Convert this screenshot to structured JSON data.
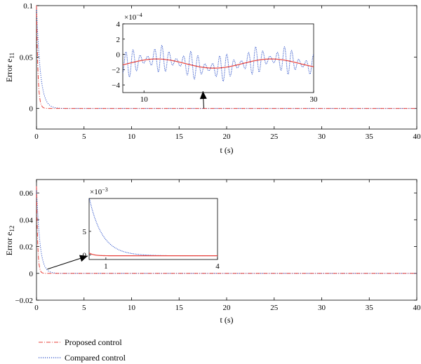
{
  "colors": {
    "proposed": "#e8403a",
    "compared": "#2a4fc8",
    "axis": "#000000",
    "arrow": "#000000"
  },
  "legend": {
    "items": [
      {
        "label": "Proposed control",
        "series": "proposed",
        "style": "dashdot"
      },
      {
        "label": "Compared control",
        "series": "compared",
        "style": "dotted"
      }
    ]
  },
  "chart_data": [
    {
      "id": "e11",
      "type": "line",
      "xlabel": "t (s)",
      "ylabel_main": "Error e",
      "ylabel_sub": "11",
      "xlim": [
        0,
        40
      ],
      "ylim": [
        -0.02,
        0.1
      ],
      "xticks": [
        0,
        5,
        10,
        15,
        20,
        25,
        30,
        35,
        40
      ],
      "xtick_labels": [
        "0",
        "5",
        "10",
        "15",
        "20",
        "25",
        "30",
        "35",
        "40"
      ],
      "yticks": [
        0,
        0.05,
        0.1
      ],
      "ytick_labels": [
        "0",
        "0.05",
        "0.1"
      ],
      "series": [
        {
          "key": "proposed",
          "name": "Proposed control",
          "initial": 0.1,
          "tau": 0.15
        },
        {
          "key": "compared",
          "name": "Compared control",
          "initial": 0.1,
          "tau": 0.4
        }
      ],
      "inset": {
        "xlim": [
          7.5,
          30
        ],
        "ylim": [
          -5,
          4
        ],
        "scale_label": "×10",
        "scale_exp": "−4",
        "xticks": [
          10,
          30
        ],
        "xtick_labels": [
          "10",
          "30"
        ],
        "yticks": [
          -4,
          -2,
          0,
          2,
          4
        ],
        "ytick_labels": [
          "−4",
          "−2",
          "0",
          "2",
          "4"
        ],
        "proposed": {
          "offset": -1.2,
          "amplitude": 0.6,
          "period": 13.5,
          "phase": 11.5
        },
        "compared": {
          "offset": -1.2,
          "amplitude": 0.6,
          "ripple": 1.8,
          "ripple_period": 0.85
        },
        "arrow_from_x": 17.6,
        "arrow_from_y": 0
      }
    },
    {
      "id": "e12",
      "type": "line",
      "xlabel": "t (s)",
      "ylabel_main": "Error e",
      "ylabel_sub": "12",
      "xlim": [
        0,
        40
      ],
      "ylim": [
        -0.02,
        0.07
      ],
      "xticks": [
        0,
        5,
        10,
        15,
        20,
        25,
        30,
        35,
        40
      ],
      "xtick_labels": [
        "0",
        "5",
        "10",
        "15",
        "20",
        "25",
        "30",
        "35",
        "40"
      ],
      "yticks": [
        -0.02,
        0,
        0.02,
        0.04,
        0.06
      ],
      "ytick_labels": [
        "−0.02",
        "0",
        "0.02",
        "0.04",
        "0.06"
      ],
      "series": [
        {
          "key": "proposed",
          "name": "Proposed control",
          "initial": 0.065,
          "tau": 0.12
        },
        {
          "key": "compared",
          "name": "Compared control",
          "initial": 0.065,
          "tau": 0.35
        }
      ],
      "inset": {
        "xlim": [
          0.55,
          4
        ],
        "ylim": [
          -1,
          12
        ],
        "scale_label": "×10",
        "scale_exp": "−3",
        "xticks": [
          1,
          4
        ],
        "xtick_labels": [
          "1",
          "4"
        ],
        "yticks": [
          0,
          5
        ],
        "ytick_labels": [
          "0",
          "5"
        ],
        "proposed": {
          "offset": -0.2,
          "amplitude": 60,
          "tau": 0.12
        },
        "compared": {
          "offset": -0.2,
          "amplitude": 60,
          "tau": 0.35
        },
        "arrow_from_x": 0.7,
        "arrow_from_y": 0.0
      }
    }
  ]
}
